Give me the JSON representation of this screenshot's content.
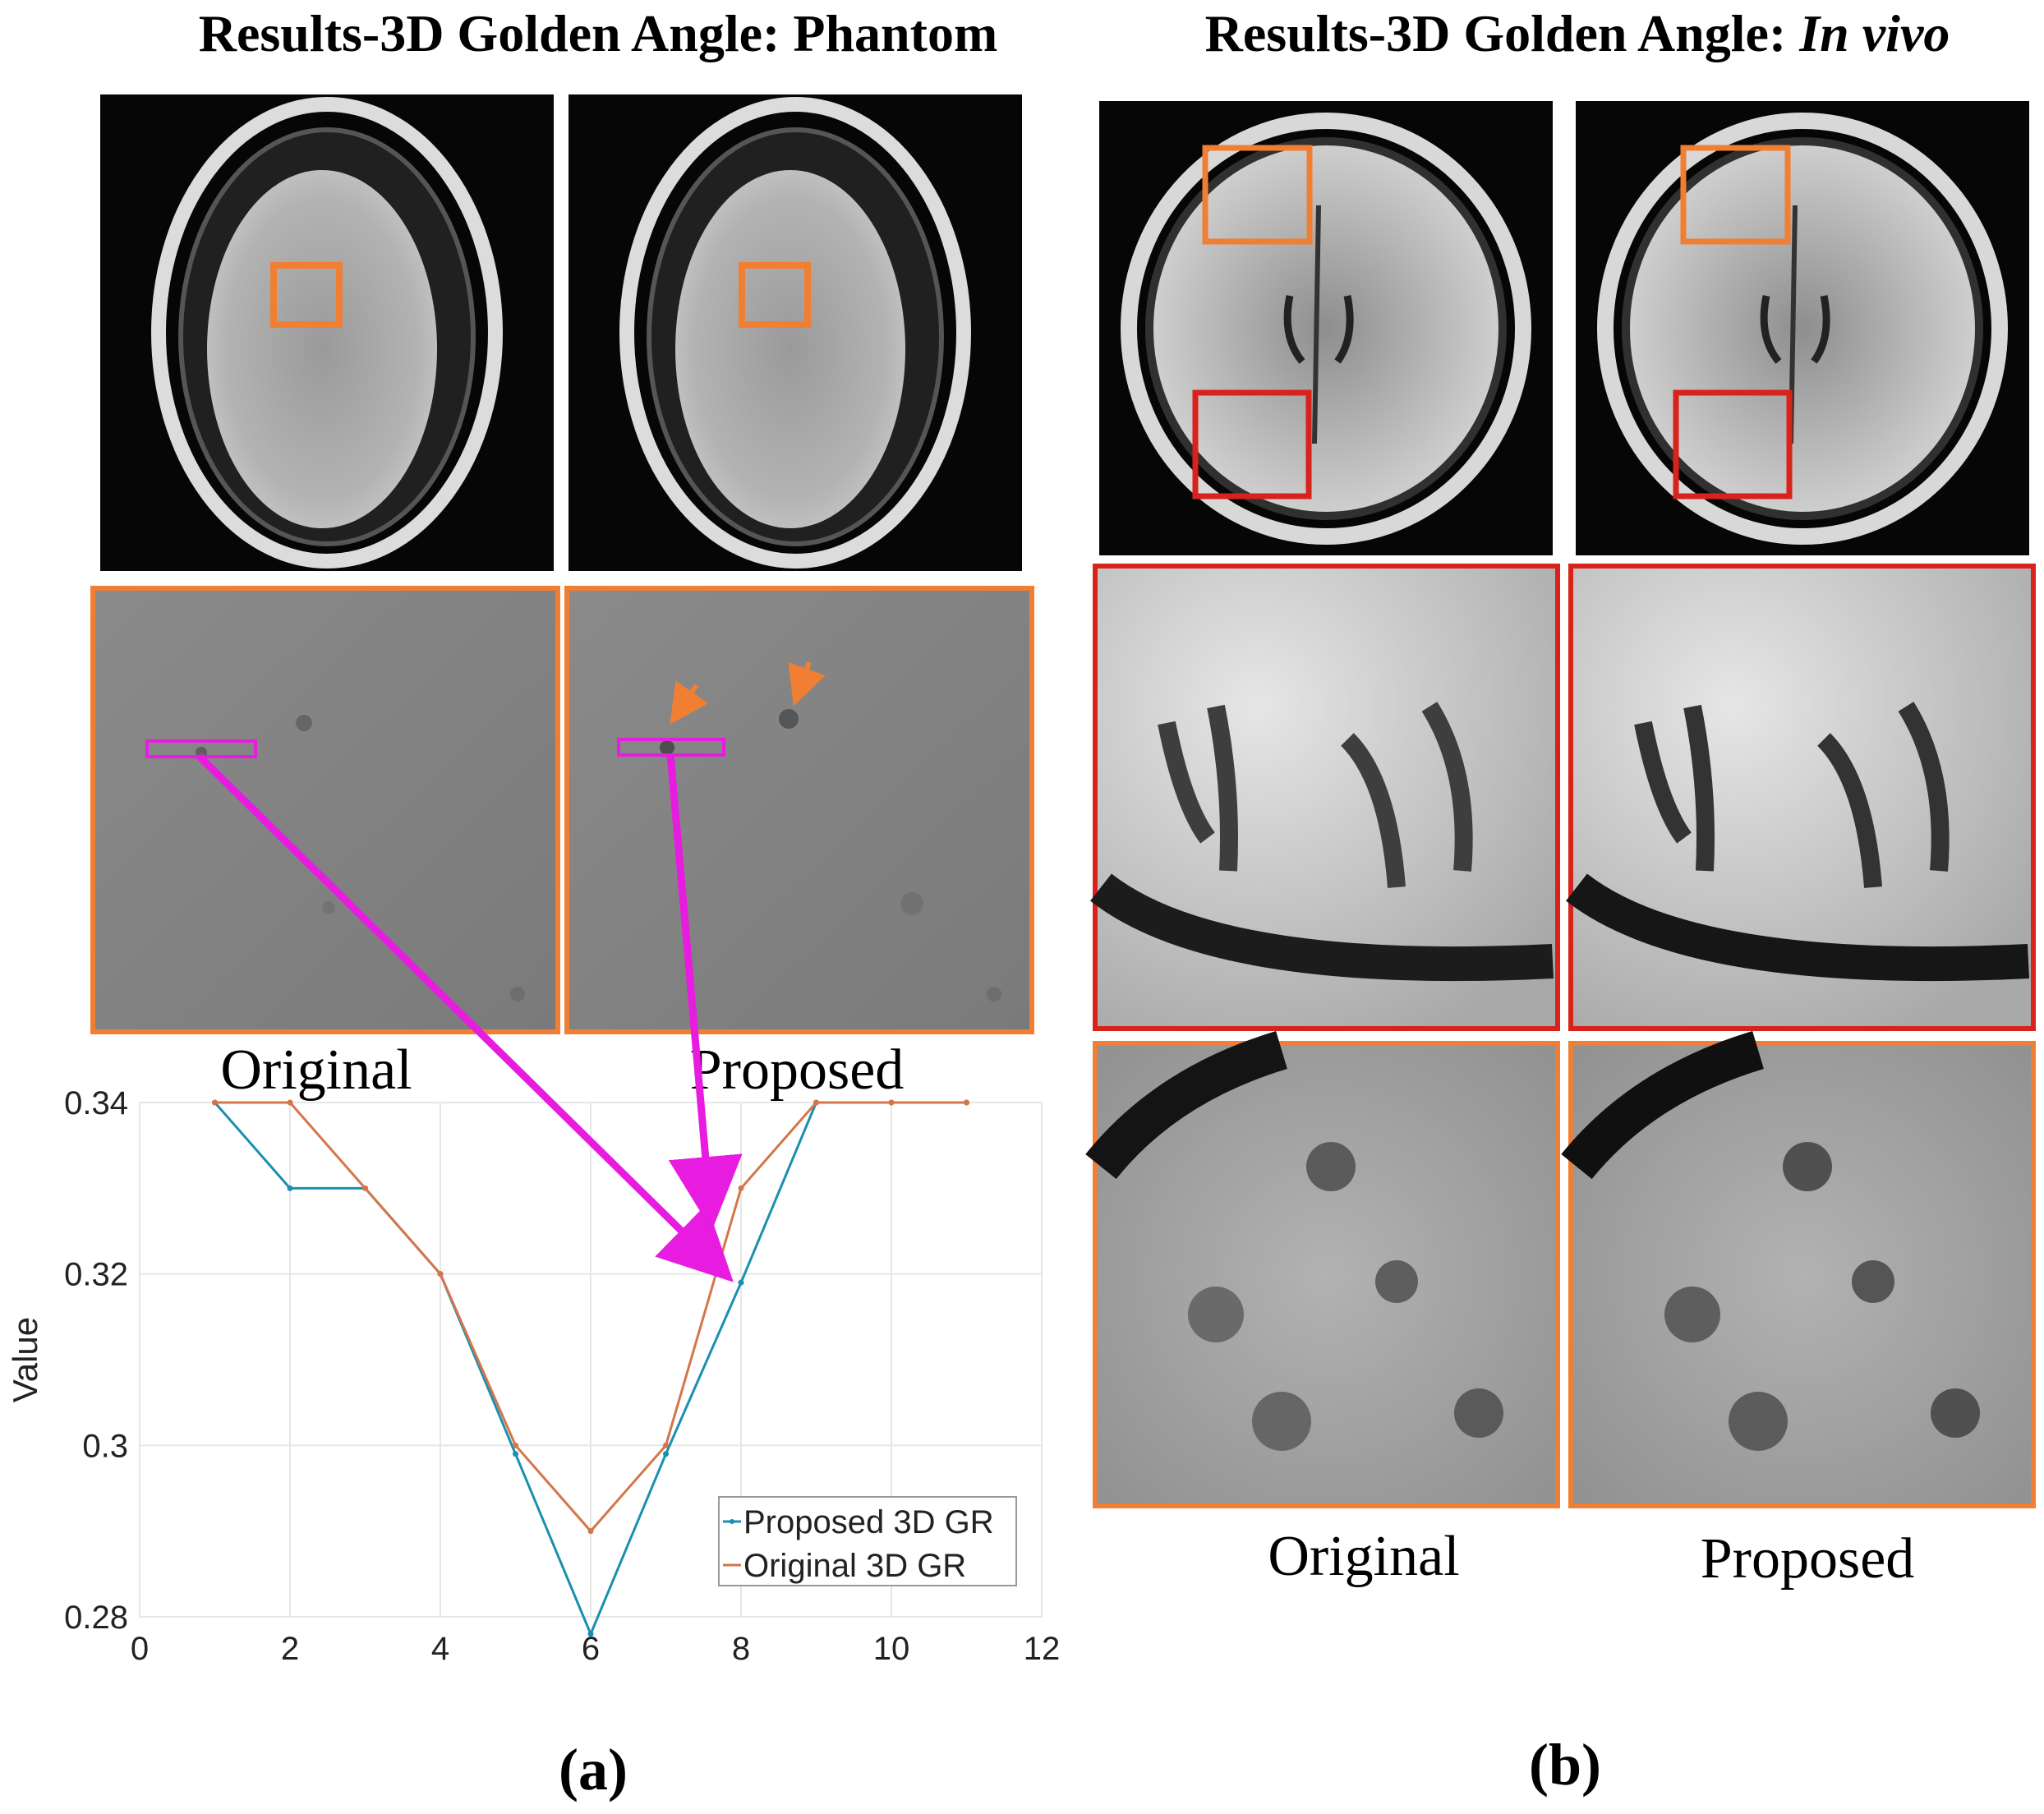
{
  "panel_a": {
    "title": "Results-3D Golden Angle: Phantom",
    "zoom_labels": [
      "Original",
      "Proposed"
    ],
    "caption": "(a)"
  },
  "panel_b": {
    "title_prefix": "Results-3D Golden Angle: ",
    "title_italic": "In vivo",
    "zoom_labels": [
      "Original",
      "Proposed"
    ],
    "caption": "(b)"
  },
  "colors": {
    "roi_orange": "#F07F34",
    "roi_red": "#D8221C",
    "arrow_magenta": "#E81BE0",
    "proposed_line": "#1B8FB0",
    "original_line": "#D4764A"
  },
  "chart_data": {
    "type": "line",
    "x": [
      1,
      2,
      3,
      4,
      5,
      6,
      7,
      8,
      9,
      10,
      11
    ],
    "series": [
      {
        "name": "Proposed 3D GR",
        "values": [
          0.34,
          0.33,
          0.33,
          0.32,
          0.299,
          0.278,
          0.299,
          0.319,
          0.34,
          0.34,
          0.34
        ]
      },
      {
        "name": "Original 3D GR",
        "values": [
          0.34,
          0.34,
          0.33,
          0.32,
          0.3,
          0.29,
          0.3,
          0.33,
          0.34,
          0.34,
          0.34
        ]
      }
    ],
    "ylabel": "Value",
    "xlim": [
      0,
      12
    ],
    "ylim": [
      0.28,
      0.34
    ],
    "xticks": [
      0,
      2,
      4,
      6,
      8,
      10,
      12
    ],
    "yticks": [
      "0.28",
      "0.3",
      "0.32",
      "0.34"
    ],
    "grid": true,
    "legend_position": "bottom-right"
  }
}
